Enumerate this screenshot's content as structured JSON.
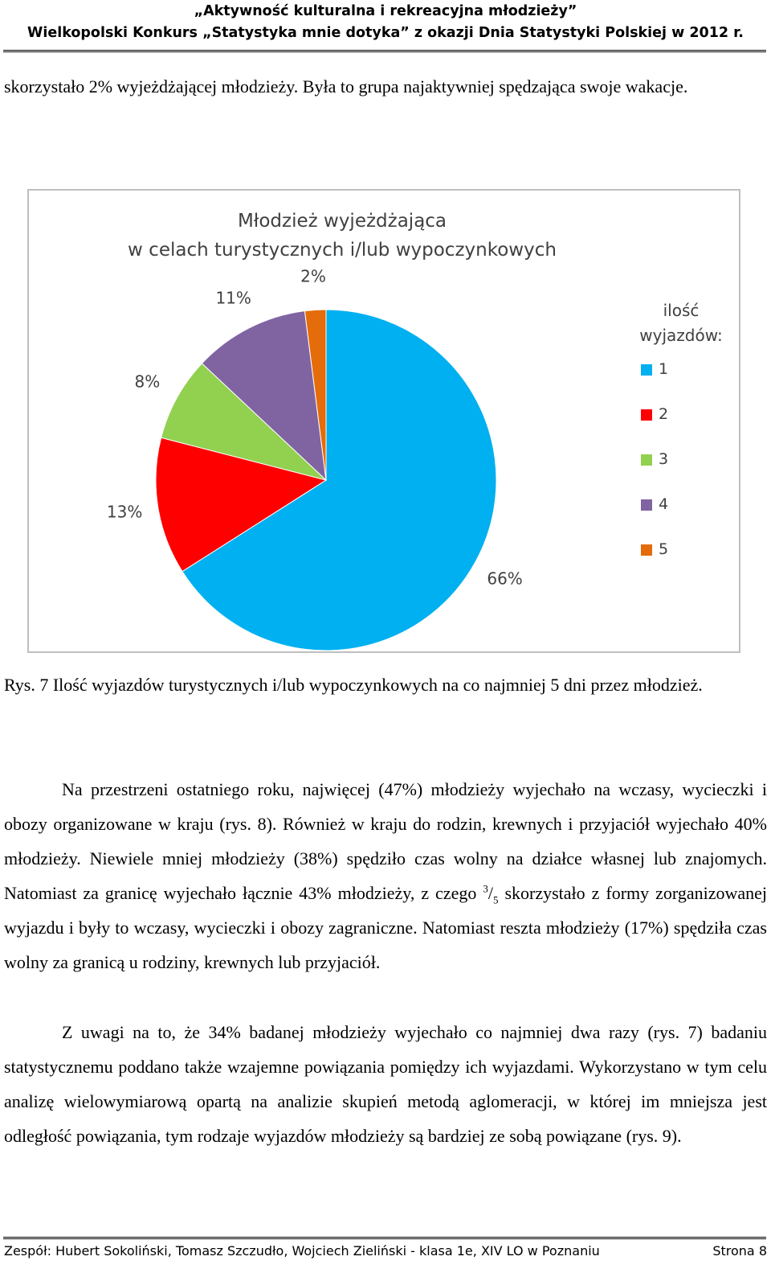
{
  "header": {
    "line1": "„Aktywność kulturalna i rekreacyjna młodzieży”",
    "line2": "Wielkopolski Konkurs „Statystyka mnie dotyka” z okazji Dnia Statystyki Polskiej w 2012 r."
  },
  "intro_text": "skorzystało 2% wyjeżdżającej młodzieży. Była to grupa najaktywniej spędzająca swoje wakacje.",
  "chart_data": {
    "type": "pie",
    "title_line1": "Młodzież wyjeżdżająca",
    "title_line2": "w celach turystycznych i/lub wypoczynkowych",
    "legend_title": "ilość wyjazdów:",
    "legend_placement": "right",
    "categories": [
      "1",
      "2",
      "3",
      "4",
      "5"
    ],
    "values": [
      66,
      13,
      8,
      11,
      2
    ],
    "labels": [
      "66%",
      "13%",
      "8%",
      "11%",
      "2%"
    ],
    "colors": [
      "#00b0f0",
      "#ff0000",
      "#92d050",
      "#8064a2",
      "#e46c0a"
    ]
  },
  "caption": "Rys. 7 Ilość wyjazdów turystycznych i/lub wypoczynkowych na co najmniej 5 dni przez młodzież.",
  "body": {
    "p1_a": "Na przestrzeni ostatniego roku, najwięcej (47%) młodzieży wyjechało na wczasy, wycieczki i obozy organizowane w kraju (rys. 8). Również w kraju do rodzin, krewnych i przyjaciół wyjechało 40% młodzieży. Niewiele mniej młodzieży (38%) spędziło czas wolny na działce własnej lub znajomych. Natomiast za granicę wyjechało łącznie 43% młodzieży, z czego",
    "p1_frac_num": "3",
    "p1_frac_sep": "/",
    "p1_frac_den": "5",
    "p1_b": "skorzystało z formy zorganizowanej wyjazdu i były to wczasy, wycieczki i obozy zagraniczne. Natomiast reszta młodzieży (17%) spędziła czas wolny za granicą u rodziny, krewnych lub przyjaciół.",
    "p2": "Z uwagi na to, że 34% badanej młodzieży wyjechało co najmniej dwa razy (rys. 7) badaniu statystycznemu poddano także wzajemne powiązania pomiędzy ich wyjazdami. Wykorzystano w tym celu analizę wielowymiarową opartą na analizie skupień metodą aglomeracji, w której im mniejsza jest odległość powiązania, tym rodzaje wyjazdów młodzieży są bardziej ze sobą powiązane (rys. 9)."
  },
  "footer": {
    "left": "Zespół: Hubert Sokoliński, Tomasz Szczudło, Wojciech Zieliński - klasa 1e, XIV LO w Poznaniu",
    "right": "Strona 8"
  }
}
